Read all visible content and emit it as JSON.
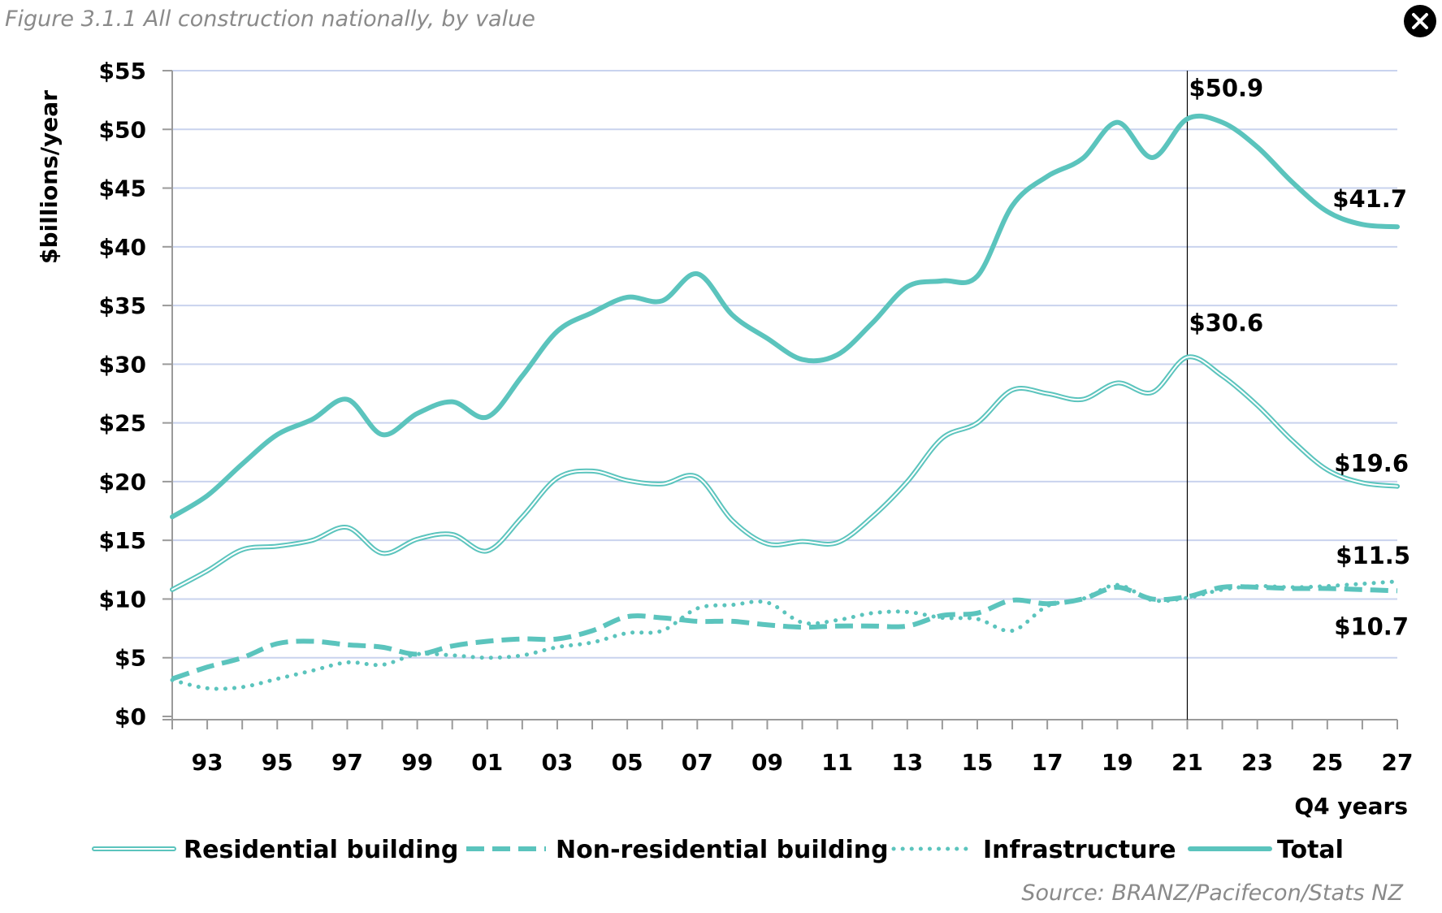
{
  "figure_title": "Figure 3.1.1 All construction nationally, by value",
  "close_button": {
    "icon": "close-icon",
    "label": "×"
  },
  "source": "Source: BRANZ/Pacifecon/Stats NZ",
  "colors": {
    "series": "#5BC4BD",
    "grid": "#C9D3EE",
    "axis": "#9a9a9a",
    "marker_line": "#000000"
  },
  "chart_data": {
    "type": "line",
    "title": "Figure 3.1.1 All construction nationally, by value",
    "xlabel": "Q4 years",
    "ylabel": "$billions/year",
    "ylim": [
      0,
      55
    ],
    "xlim": [
      1992,
      2027
    ],
    "grid": true,
    "legend_position": "bottom",
    "y_ticks": [
      0,
      5,
      10,
      15,
      20,
      25,
      30,
      35,
      40,
      45,
      50,
      55
    ],
    "y_tick_labels": [
      "$0",
      "$5",
      "$10",
      "$15",
      "$20",
      "$25",
      "$30",
      "$35",
      "$40",
      "$45",
      "$50",
      "$55"
    ],
    "x_tick_years": [
      1993,
      1995,
      1997,
      1999,
      2001,
      2003,
      2005,
      2007,
      2009,
      2011,
      2013,
      2015,
      2017,
      2019,
      2021,
      2023,
      2025,
      2027
    ],
    "x_tick_labels": [
      "93",
      "95",
      "97",
      "99",
      "01",
      "03",
      "05",
      "07",
      "09",
      "11",
      "13",
      "15",
      "17",
      "19",
      "21",
      "23",
      "25",
      "27"
    ],
    "vertical_marker_year": 2021,
    "x": [
      1992,
      1993,
      1994,
      1995,
      1996,
      1997,
      1998,
      1999,
      2000,
      2001,
      2002,
      2003,
      2004,
      2005,
      2006,
      2007,
      2008,
      2009,
      2010,
      2011,
      2012,
      2013,
      2014,
      2015,
      2016,
      2017,
      2018,
      2019,
      2020,
      2021,
      2022,
      2023,
      2024,
      2025,
      2026,
      2027
    ],
    "series": [
      {
        "name": "Residential building",
        "style": "double",
        "values": [
          10.8,
          12.4,
          14.2,
          14.5,
          15.0,
          16.1,
          13.9,
          15.1,
          15.5,
          14.1,
          17.0,
          20.3,
          20.9,
          20.1,
          19.8,
          20.4,
          16.7,
          14.7,
          14.9,
          14.8,
          17.0,
          20.0,
          23.7,
          25.0,
          27.8,
          27.5,
          27.0,
          28.4,
          27.6,
          30.6,
          29.0,
          26.5,
          23.5,
          21.0,
          19.9,
          19.6
        ]
      },
      {
        "name": "Non-residential building",
        "style": "dashed",
        "values": [
          3.2,
          4.2,
          5.0,
          6.2,
          6.4,
          6.1,
          5.9,
          5.3,
          6.0,
          6.4,
          6.6,
          6.6,
          7.3,
          8.5,
          8.4,
          8.1,
          8.1,
          7.8,
          7.6,
          7.7,
          7.7,
          7.7,
          8.6,
          8.8,
          9.9,
          9.6,
          10.0,
          11.0,
          10.0,
          10.2,
          11.0,
          11.0,
          10.9,
          10.9,
          10.8,
          10.7
        ]
      },
      {
        "name": "Infrastructure",
        "style": "dotted",
        "values": [
          3.1,
          2.4,
          2.5,
          3.2,
          3.9,
          4.6,
          4.4,
          5.3,
          5.2,
          5.0,
          5.2,
          5.9,
          6.3,
          7.1,
          7.3,
          9.2,
          9.5,
          9.7,
          8.0,
          8.2,
          8.8,
          8.9,
          8.4,
          8.3,
          7.3,
          9.4,
          10.0,
          11.2,
          9.9,
          10.1,
          10.8,
          11.1,
          11.0,
          11.1,
          11.3,
          11.5
        ]
      },
      {
        "name": "Total",
        "style": "solid",
        "values": [
          17.0,
          18.8,
          21.5,
          24.0,
          25.3,
          27.0,
          24.0,
          25.8,
          26.8,
          25.5,
          29.0,
          32.8,
          34.4,
          35.7,
          35.4,
          37.7,
          34.2,
          32.2,
          30.4,
          30.8,
          33.5,
          36.6,
          37.1,
          37.5,
          43.5,
          46.0,
          47.5,
          50.6,
          47.6,
          50.9,
          50.6,
          48.5,
          45.5,
          43.0,
          41.9,
          41.7
        ]
      }
    ],
    "annotations": [
      {
        "text": "$50.9",
        "series": "Total",
        "year": 2021,
        "value": 50.9
      },
      {
        "text": "$41.7",
        "series": "Total",
        "year": 2027,
        "value": 41.7
      },
      {
        "text": "$30.6",
        "series": "Residential building",
        "year": 2021,
        "value": 30.6
      },
      {
        "text": "$19.6",
        "series": "Residential building",
        "year": 2027,
        "value": 19.6
      },
      {
        "text": "$11.5",
        "series": "Infrastructure",
        "year": 2027,
        "value": 11.5
      },
      {
        "text": "$10.7",
        "series": "Non-residential building",
        "year": 2027,
        "value": 10.7
      }
    ]
  }
}
